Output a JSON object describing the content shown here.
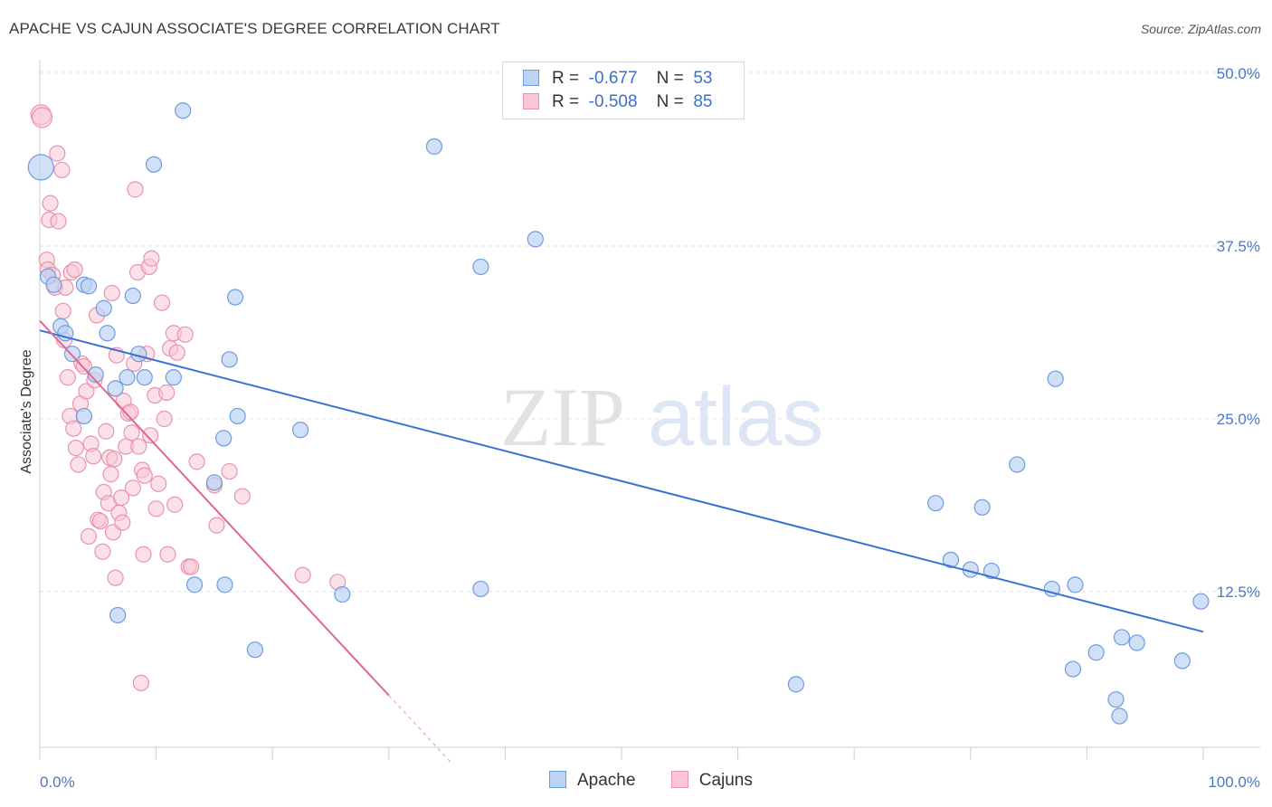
{
  "title": "APACHE VS CAJUN ASSOCIATE'S DEGREE CORRELATION CHART",
  "source": "Source: ZipAtlas.com",
  "watermark": {
    "zip": "ZIP",
    "atlas": "atlas"
  },
  "legend": {
    "rows": [
      {
        "r_label": "R =",
        "r_value": "-0.677",
        "n_label": "N =",
        "n_value": "53"
      },
      {
        "r_label": "R =",
        "r_value": "-0.508",
        "n_label": "N =",
        "n_value": "85"
      }
    ]
  },
  "bottom_legend": [
    "Apache",
    "Cajuns"
  ],
  "colors": {
    "apache_fill": "#bcd3f3",
    "apache_stroke": "#6f9be0",
    "apache_line": "#3a72d0",
    "cajun_fill": "#f8c6d4",
    "cajun_stroke": "#ea93ad",
    "cajun_line": "#e2668f",
    "grid": "#e3e3e3",
    "tick_text": "#4a78c8"
  },
  "chart_data": {
    "type": "scatter",
    "title": "APACHE VS CAJUN ASSOCIATE'S DEGREE CORRELATION CHART",
    "xlabel": "",
    "ylabel": "Associate's Degree",
    "xlim": [
      0,
      100
    ],
    "ylim": [
      0,
      52
    ],
    "x_ticks": [
      "0.0%",
      "100.0%"
    ],
    "y_ticks": [
      {
        "value": 12.5,
        "label": "12.5%"
      },
      {
        "value": 25.0,
        "label": "25.0%"
      },
      {
        "value": 37.5,
        "label": "37.5%"
      },
      {
        "value": 50.0,
        "label": "50.0%"
      }
    ],
    "grid": true,
    "legend_position": "top-center",
    "series": [
      {
        "name": "Apache",
        "r": -0.677,
        "n": 53,
        "trend": {
          "x": [
            0,
            100
          ],
          "y": [
            31.4,
            9.6
          ]
        },
        "points": [
          [
            0.1,
            43.2
          ],
          [
            0.7,
            35.3
          ],
          [
            1.2,
            34.7
          ],
          [
            1.8,
            31.7
          ],
          [
            2.2,
            31.2
          ],
          [
            2.8,
            29.7
          ],
          [
            3.8,
            34.7
          ],
          [
            4.2,
            34.6
          ],
          [
            4.8,
            28.2
          ],
          [
            5.5,
            33.0
          ],
          [
            5.8,
            31.2
          ],
          [
            6.5,
            27.2
          ],
          [
            3.8,
            25.2
          ],
          [
            6.7,
            10.8
          ],
          [
            7.5,
            28.0
          ],
          [
            8.0,
            33.9
          ],
          [
            8.5,
            29.7
          ],
          [
            9.0,
            28.0
          ],
          [
            9.8,
            43.4
          ],
          [
            11.5,
            28.0
          ],
          [
            12.3,
            47.3
          ],
          [
            13.3,
            13.0
          ],
          [
            15.0,
            20.4
          ],
          [
            15.8,
            23.6
          ],
          [
            15.9,
            13.0
          ],
          [
            16.3,
            29.3
          ],
          [
            16.8,
            33.8
          ],
          [
            17.0,
            25.2
          ],
          [
            18.5,
            8.3
          ],
          [
            22.4,
            24.2
          ],
          [
            26.0,
            12.3
          ],
          [
            33.9,
            44.7
          ],
          [
            37.9,
            36.0
          ],
          [
            37.9,
            12.7
          ],
          [
            42.6,
            38.0
          ],
          [
            65.0,
            5.8
          ],
          [
            77.0,
            18.9
          ],
          [
            78.3,
            14.8
          ],
          [
            80.0,
            14.1
          ],
          [
            81.0,
            18.6
          ],
          [
            81.8,
            14.0
          ],
          [
            84.0,
            21.7
          ],
          [
            87.0,
            12.7
          ],
          [
            87.3,
            27.9
          ],
          [
            88.8,
            6.9
          ],
          [
            89.0,
            13.0
          ],
          [
            90.8,
            8.1
          ],
          [
            92.5,
            4.7
          ],
          [
            92.8,
            3.5
          ],
          [
            93.0,
            9.2
          ],
          [
            94.3,
            8.8
          ],
          [
            98.2,
            7.5
          ],
          [
            99.8,
            11.8
          ]
        ]
      },
      {
        "name": "Cajuns",
        "r": -0.508,
        "n": 85,
        "trend": {
          "x": [
            0,
            30
          ],
          "y": [
            32.1,
            5.0
          ]
        },
        "trend_dashed": {
          "x": [
            30,
            35.5
          ],
          "y": [
            5.0,
            0.0
          ]
        },
        "points": [
          [
            0.1,
            47.0
          ],
          [
            0.2,
            46.8
          ],
          [
            0.6,
            36.5
          ],
          [
            0.7,
            35.8
          ],
          [
            0.8,
            39.4
          ],
          [
            0.9,
            40.6
          ],
          [
            1.1,
            35.4
          ],
          [
            1.3,
            34.5
          ],
          [
            1.5,
            44.2
          ],
          [
            1.6,
            39.3
          ],
          [
            1.9,
            43.0
          ],
          [
            2.0,
            32.8
          ],
          [
            2.1,
            30.7
          ],
          [
            2.2,
            34.5
          ],
          [
            2.4,
            28.0
          ],
          [
            2.6,
            25.2
          ],
          [
            2.7,
            35.6
          ],
          [
            3.0,
            35.8
          ],
          [
            3.1,
            22.9
          ],
          [
            3.3,
            21.7
          ],
          [
            3.5,
            26.1
          ],
          [
            3.6,
            29.0
          ],
          [
            3.8,
            28.8
          ],
          [
            4.0,
            27.0
          ],
          [
            4.2,
            16.5
          ],
          [
            4.4,
            23.2
          ],
          [
            4.6,
            22.3
          ],
          [
            4.7,
            27.8
          ],
          [
            4.9,
            32.5
          ],
          [
            5.0,
            17.7
          ],
          [
            5.2,
            17.6
          ],
          [
            5.4,
            15.4
          ],
          [
            5.5,
            19.7
          ],
          [
            5.7,
            24.1
          ],
          [
            5.9,
            18.9
          ],
          [
            6.0,
            22.2
          ],
          [
            6.2,
            34.1
          ],
          [
            6.3,
            16.8
          ],
          [
            6.4,
            22.1
          ],
          [
            6.5,
            13.5
          ],
          [
            6.6,
            29.6
          ],
          [
            6.8,
            18.2
          ],
          [
            7.0,
            19.3
          ],
          [
            7.1,
            17.5
          ],
          [
            7.2,
            26.3
          ],
          [
            7.4,
            23.0
          ],
          [
            7.6,
            25.4
          ],
          [
            7.8,
            25.5
          ],
          [
            7.9,
            24.0
          ],
          [
            8.0,
            20.0
          ],
          [
            8.2,
            41.6
          ],
          [
            8.4,
            35.6
          ],
          [
            8.5,
            23.0
          ],
          [
            8.7,
            5.9
          ],
          [
            8.8,
            21.3
          ],
          [
            8.9,
            15.2
          ],
          [
            9.0,
            20.9
          ],
          [
            9.2,
            29.7
          ],
          [
            9.4,
            36.0
          ],
          [
            9.5,
            23.8
          ],
          [
            9.6,
            36.6
          ],
          [
            9.9,
            26.7
          ],
          [
            10.0,
            18.5
          ],
          [
            10.2,
            20.3
          ],
          [
            10.5,
            33.4
          ],
          [
            10.7,
            25.0
          ],
          [
            10.9,
            26.9
          ],
          [
            11.0,
            15.2
          ],
          [
            11.2,
            30.1
          ],
          [
            11.5,
            31.2
          ],
          [
            11.6,
            18.8
          ],
          [
            11.8,
            29.8
          ],
          [
            12.5,
            31.1
          ],
          [
            12.8,
            14.3
          ],
          [
            13.0,
            14.3
          ],
          [
            13.5,
            21.9
          ],
          [
            15.0,
            20.2
          ],
          [
            15.2,
            17.3
          ],
          [
            16.3,
            21.2
          ],
          [
            17.4,
            19.4
          ],
          [
            22.6,
            13.7
          ],
          [
            25.6,
            13.2
          ],
          [
            6.1,
            21.0
          ],
          [
            2.9,
            24.3
          ],
          [
            8.1,
            29.0
          ]
        ]
      }
    ]
  }
}
